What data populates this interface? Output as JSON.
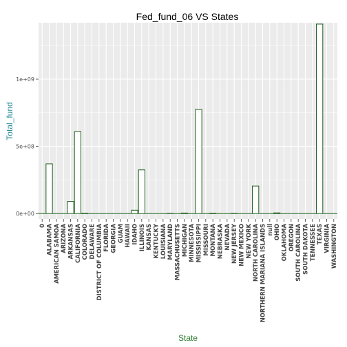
{
  "chart_data": {
    "type": "bar",
    "title": "Fed_fund_06 VS States",
    "xlabel": "State",
    "ylabel": "Total_fund",
    "ylim": [
      -40000000,
      1420000000
    ],
    "yticks": [
      0,
      500000000,
      1000000000
    ],
    "ytick_labels": [
      "0e+00",
      "5e+08",
      "1e+09"
    ],
    "grid": true,
    "categories": [
      "0",
      "ALABAMA",
      "AMERICAN SAMOA",
      "ARIZONA",
      "ARKANSAS",
      "CALIFORNIA",
      "COLORADO",
      "DELAWARE",
      "DISTRICT OF COLUMBIA",
      "FLORIDA",
      "GEORGIA",
      "GUAM",
      "HAWAII",
      "IDAHO",
      "ILLINOIS",
      "KANSAS",
      "KENTUCKY",
      "LOUISIANA",
      "MARYLAND",
      "MASSACHUSETTS",
      "MICHIGAN",
      "MINNESOTA",
      "MISSISSIPPI",
      "MISSOURI",
      "MONTANA",
      "NEBRASKA",
      "NEVADA",
      "NEW JERSEY",
      "NEW MEXICO",
      "NEW YORK",
      "NORTH CAROLINA",
      "NORTHERN MARIANA ISLANDS",
      "null",
      "OHIO",
      "OKLAHOMA",
      "OREGON",
      "SOUTH CAROLINA",
      "SOUTH DAKOTA",
      "TENNESSEE",
      "TEXAS",
      "VIRGINIA",
      "WASHINGTON"
    ],
    "values": [
      0,
      370000000,
      0,
      0,
      90000000,
      610000000,
      3000000,
      0,
      0,
      0,
      0,
      0,
      0,
      25000000,
      325000000,
      0,
      0,
      0,
      2000000,
      0,
      4000000,
      0,
      775000000,
      0,
      3000000,
      0,
      0,
      2000000,
      0,
      0,
      205000000,
      0,
      0,
      5000000,
      0,
      0,
      0,
      0,
      0,
      1410000000,
      0,
      0
    ],
    "colors": {
      "bar_fill": "#ffffff",
      "bar_stroke": "#1a5e1a",
      "panel": "#ebebeb",
      "grid": "#ffffff"
    }
  }
}
